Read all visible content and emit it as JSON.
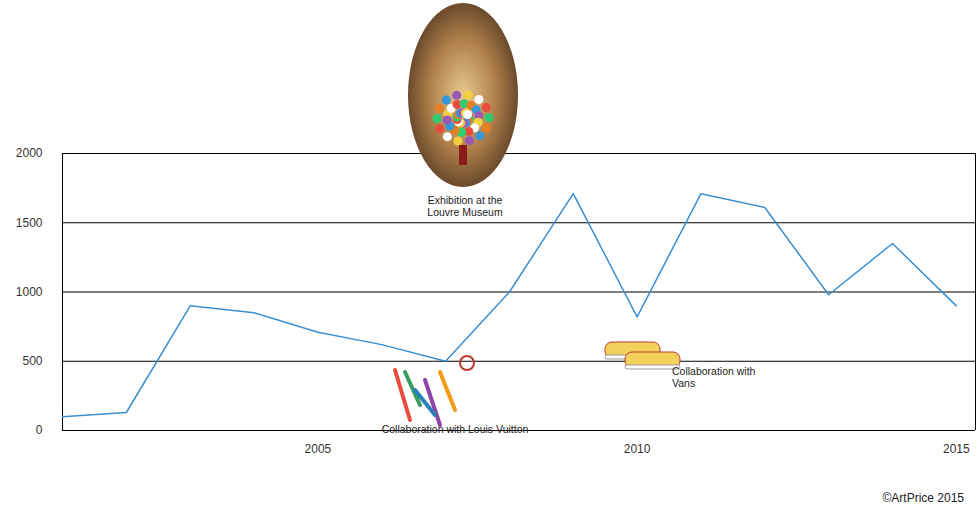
{
  "chart_data": {
    "type": "line",
    "x": [
      2001,
      2002,
      2003,
      2004,
      2005,
      2006,
      2007,
      2008,
      2009,
      2010,
      2011,
      2012,
      2013,
      2014,
      2015
    ],
    "values": [
      100,
      130,
      900,
      850,
      710,
      620,
      500,
      1000,
      1710,
      820,
      1710,
      1610,
      980,
      1350,
      900
    ],
    "color": "#3b8fd1",
    "xlim": [
      2001,
      2015.3
    ],
    "xticks": [
      2005,
      2010,
      2015
    ],
    "ylim": [
      0,
      2000
    ],
    "yticks": [
      0,
      500,
      1000,
      1500,
      2000
    ],
    "grid": true,
    "annotations": [
      "Exhibition at the\nLouvre Museum",
      "Collaboration with Louis Vuitton",
      "Collaboration with\nVans"
    ],
    "source": "©ArtPrice 2015"
  }
}
